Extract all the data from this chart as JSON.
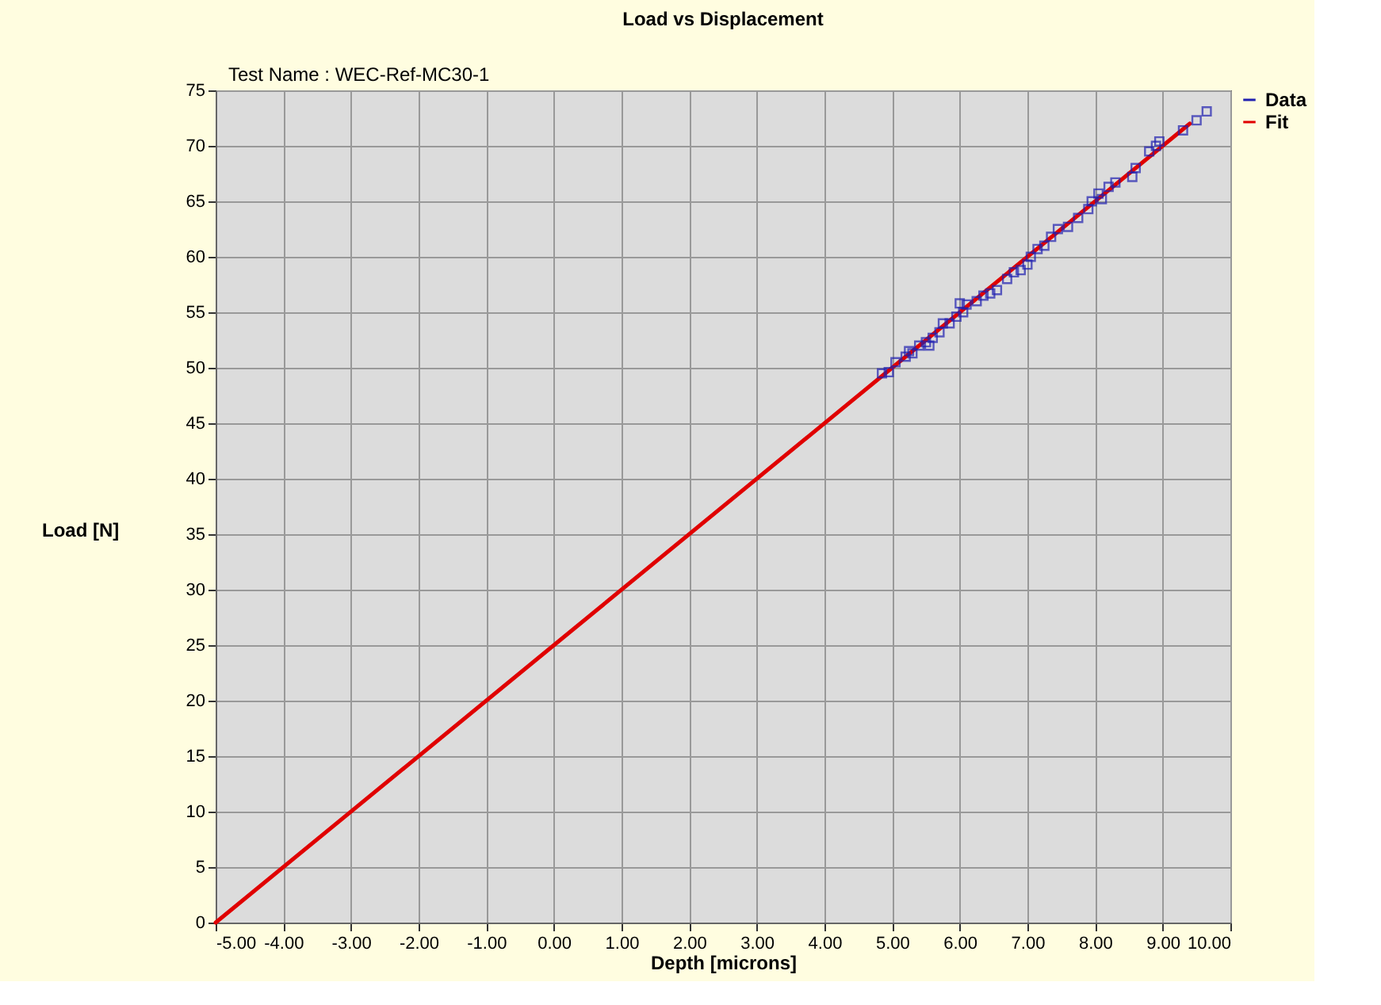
{
  "chart_data": {
    "type": "scatter",
    "title": "Load vs Displacement",
    "subtitle": "Test Name : WEC-Ref-MC30-1",
    "xlabel": "Depth [microns]",
    "ylabel": "Load [N]",
    "xlim": [
      -5,
      10
    ],
    "ylim": [
      0,
      75
    ],
    "xticks": [
      {
        "value": -5,
        "label": "-5.00"
      },
      {
        "value": -4,
        "label": "-4.00"
      },
      {
        "value": -3,
        "label": "-3.00"
      },
      {
        "value": -2,
        "label": "-2.00"
      },
      {
        "value": -1,
        "label": "-1.00"
      },
      {
        "value": 0,
        "label": "0.00"
      },
      {
        "value": 1,
        "label": "1.00"
      },
      {
        "value": 2,
        "label": "2.00"
      },
      {
        "value": 3,
        "label": "3.00"
      },
      {
        "value": 4,
        "label": "4.00"
      },
      {
        "value": 5,
        "label": "5.00"
      },
      {
        "value": 6,
        "label": "6.00"
      },
      {
        "value": 7,
        "label": "7.00"
      },
      {
        "value": 8,
        "label": "8.00"
      },
      {
        "value": 9,
        "label": "9.00"
      },
      {
        "value": 10,
        "label": "10.00"
      }
    ],
    "yticks": [
      0,
      5,
      10,
      15,
      20,
      25,
      30,
      35,
      40,
      45,
      50,
      55,
      60,
      65,
      70,
      75
    ],
    "grid": true,
    "legend": "top right",
    "series": [
      {
        "name": "Data",
        "marker": "square",
        "color": "#2020b0",
        "x": [
          4.85,
          4.95,
          5.05,
          5.2,
          5.25,
          5.3,
          5.4,
          5.5,
          5.55,
          5.6,
          5.7,
          5.75,
          5.85,
          5.95,
          6.0,
          6.05,
          6.1,
          6.25,
          6.35,
          6.45,
          6.55,
          6.7,
          6.8,
          6.9,
          7.0,
          7.05,
          7.15,
          7.25,
          7.35,
          7.45,
          7.6,
          7.75,
          7.9,
          7.95,
          8.05,
          8.1,
          8.2,
          8.3,
          8.55,
          8.6,
          8.8,
          8.9,
          8.95,
          9.3,
          9.5,
          9.65
        ],
        "values": [
          49.5,
          49.6,
          50.5,
          51,
          51.5,
          51.3,
          52,
          52.3,
          52,
          52.7,
          53.2,
          54,
          54,
          54.6,
          55.8,
          55,
          55.7,
          56,
          56.5,
          56.7,
          57,
          58,
          58.6,
          58.8,
          59.3,
          60,
          60.7,
          61,
          61.8,
          62.5,
          62.7,
          63.5,
          64.3,
          65,
          65.7,
          65.2,
          66.3,
          66.7,
          67.2,
          68,
          69.5,
          70,
          70.4,
          71.4,
          72.3,
          73.1
        ]
      },
      {
        "name": "Fit",
        "type": "line",
        "marker": "none",
        "color": "#e00000",
        "x": [
          -5,
          0,
          5,
          9.4
        ],
        "values": [
          0,
          25,
          50,
          72
        ]
      }
    ]
  }
}
